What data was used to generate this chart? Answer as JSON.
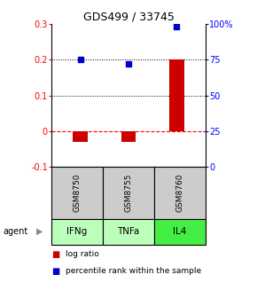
{
  "title": "GDS499 / 33745",
  "samples": [
    "GSM8750",
    "GSM8755",
    "GSM8760"
  ],
  "agents": [
    "IFNg",
    "TNFa",
    "IL4"
  ],
  "log_ratios": [
    -0.03,
    -0.03,
    0.2
  ],
  "percentile_ranks": [
    75,
    72,
    98
  ],
  "bar_color": "#cc0000",
  "dot_color": "#0000cc",
  "ylim_left": [
    -0.1,
    0.3
  ],
  "ylim_right": [
    0,
    100
  ],
  "yticks_left": [
    -0.1,
    0,
    0.1,
    0.2,
    0.3
  ],
  "yticks_right": [
    0,
    25,
    50,
    75,
    100
  ],
  "ytick_labels_left": [
    "-0.1",
    "0",
    "0.1",
    "0.2",
    "0.3"
  ],
  "ytick_labels_right": [
    "0",
    "25",
    "50",
    "75",
    "100%"
  ],
  "hlines_black": [
    0.1,
    0.2
  ],
  "hline_red": 0,
  "agent_colors": [
    "#bbffbb",
    "#bbffbb",
    "#44ee44"
  ],
  "sample_box_color": "#cccccc",
  "background_color": "#ffffff"
}
